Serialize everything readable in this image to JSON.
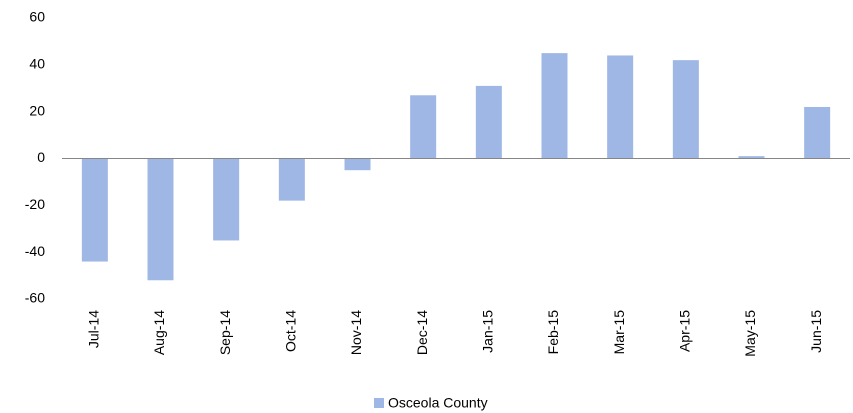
{
  "chart_data": {
    "type": "bar",
    "categories": [
      "Jul-14",
      "Aug-14",
      "Sep-14",
      "Oct-14",
      "Nov-14",
      "Dec-14",
      "Jan-15",
      "Feb-15",
      "Mar-15",
      "Apr-15",
      "May-15",
      "Jun-15"
    ],
    "series": [
      {
        "name": "Osceola County",
        "color": "#9fb7e5",
        "values": [
          -44,
          -52,
          -35,
          -18,
          -5,
          27,
          31,
          45,
          44,
          42,
          1,
          22
        ]
      }
    ],
    "ylim": [
      -60,
      60
    ],
    "yticks": [
      -60,
      -40,
      -20,
      0,
      20,
      40,
      60
    ],
    "grid": false,
    "legend": "bottom"
  }
}
